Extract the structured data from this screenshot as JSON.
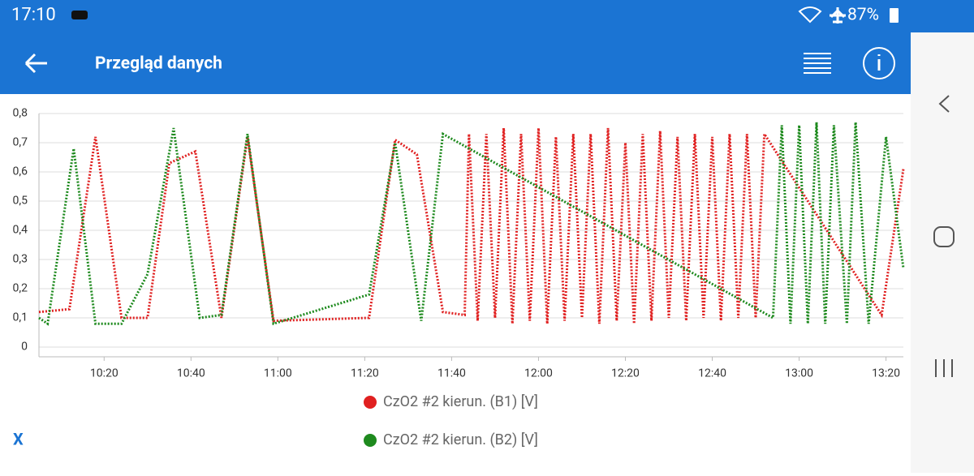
{
  "status_bar": {
    "time": "17:10",
    "battery": "87%"
  },
  "app_bar": {
    "title": "Przegląd danych"
  },
  "chart_data": {
    "type": "line",
    "xlim": [
      "10:05",
      "13:24"
    ],
    "xticks": [
      "10:20",
      "10:40",
      "11:00",
      "11:20",
      "11:40",
      "12:00",
      "12:20",
      "12:40",
      "13:00",
      "13:20"
    ],
    "ylim": [
      0,
      0.8
    ],
    "yticks": [
      {
        "value": 0,
        "label": "0"
      },
      {
        "value": 0.1,
        "label": "0,1"
      },
      {
        "value": 0.2,
        "label": "0,2"
      },
      {
        "value": 0.3,
        "label": "0,3"
      },
      {
        "value": 0.4,
        "label": "0,4"
      },
      {
        "value": 0.5,
        "label": "0,5"
      },
      {
        "value": 0.6,
        "label": "0,6"
      },
      {
        "value": 0.7,
        "label": "0,7"
      },
      {
        "value": 0.8,
        "label": "0,8"
      }
    ],
    "grid": true,
    "series": [
      {
        "name": "CzO2 #2 kierun. (B1) [V]",
        "color": "#e02020",
        "x": [
          "10:05",
          "10:12",
          "10:18",
          "10:24",
          "10:30",
          "10:35",
          "10:41",
          "10:47",
          "10:53",
          "10:59",
          "11:21",
          "11:27",
          "11:32",
          "11:38",
          "11:43",
          "11:44",
          "11:46",
          "11:48",
          "11:50",
          "11:52",
          "11:54",
          "11:56",
          "11:58",
          "12:00",
          "12:02",
          "12:04",
          "12:06",
          "12:08",
          "12:10",
          "12:12",
          "12:14",
          "12:16",
          "12:18",
          "12:20",
          "12:22",
          "12:24",
          "12:26",
          "12:28",
          "12:30",
          "12:32",
          "12:34",
          "12:36",
          "12:38",
          "12:40",
          "12:42",
          "12:44",
          "12:46",
          "12:48",
          "12:50",
          "12:52",
          "13:19",
          "13:24"
        ],
        "values": [
          0.12,
          0.13,
          0.72,
          0.1,
          0.1,
          0.63,
          0.67,
          0.1,
          0.72,
          0.09,
          0.1,
          0.71,
          0.66,
          0.12,
          0.11,
          0.73,
          0.09,
          0.73,
          0.1,
          0.75,
          0.08,
          0.73,
          0.09,
          0.75,
          0.08,
          0.72,
          0.09,
          0.73,
          0.1,
          0.73,
          0.08,
          0.75,
          0.09,
          0.7,
          0.08,
          0.73,
          0.09,
          0.74,
          0.1,
          0.72,
          0.09,
          0.73,
          0.1,
          0.72,
          0.09,
          0.73,
          0.1,
          0.73,
          0.1,
          0.73,
          0.11,
          0.61
        ]
      },
      {
        "name": "CzO2 #2 kierun. (B2) [V]",
        "color": "#1e8a1e",
        "x": [
          "10:05",
          "10:07",
          "10:13",
          "10:18",
          "10:24",
          "10:30",
          "10:36",
          "10:42",
          "10:47",
          "10:53",
          "10:59",
          "11:21",
          "11:27",
          "11:33",
          "11:38",
          "12:54",
          "12:56",
          "12:58",
          "13:00",
          "13:02",
          "13:04",
          "13:06",
          "13:08",
          "13:11",
          "13:13",
          "13:16",
          "13:20",
          "13:24"
        ],
        "values": [
          0.1,
          0.08,
          0.68,
          0.08,
          0.08,
          0.25,
          0.75,
          0.1,
          0.11,
          0.73,
          0.08,
          0.18,
          0.7,
          0.09,
          0.73,
          0.1,
          0.76,
          0.08,
          0.76,
          0.08,
          0.77,
          0.08,
          0.76,
          0.08,
          0.77,
          0.08,
          0.72,
          0.27
        ]
      }
    ]
  },
  "close_button": "X"
}
